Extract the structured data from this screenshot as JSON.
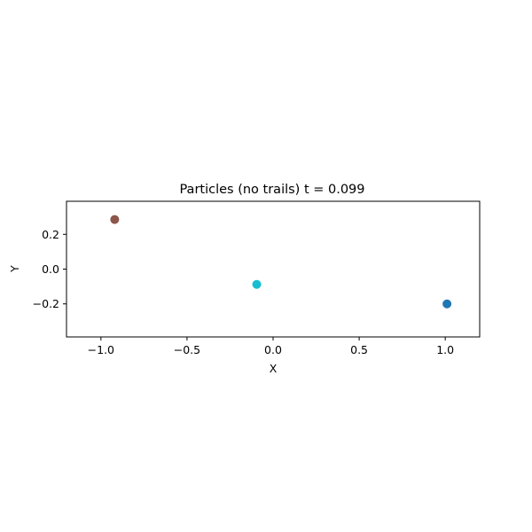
{
  "chart_data": {
    "type": "scatter",
    "title": "Particles (no trails)  t = 0.099",
    "xlabel": "X",
    "ylabel": "Y",
    "xlim": [
      -1.2,
      1.2
    ],
    "ylim": [
      -0.39,
      0.39
    ],
    "xticks": [
      -1.0,
      -0.5,
      0.0,
      0.5,
      1.0
    ],
    "xtick_labels": [
      "−1.0",
      "−0.5",
      "0.0",
      "0.5",
      "1.0"
    ],
    "yticks": [
      0.2,
      0.0,
      -0.2
    ],
    "ytick_labels": [
      "0.2",
      "0.0",
      "−0.2"
    ],
    "grid": false,
    "points": [
      {
        "x": -0.92,
        "y": 0.285,
        "color": "#8c564b"
      },
      {
        "x": -0.095,
        "y": -0.088,
        "color": "#17becf"
      },
      {
        "x": 1.01,
        "y": -0.2,
        "color": "#1f77b4"
      }
    ]
  }
}
